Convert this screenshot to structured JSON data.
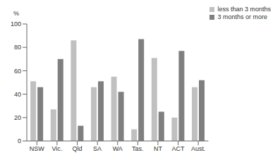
{
  "chart_data": {
    "type": "bar",
    "y_label": "%",
    "categories": [
      "NSW",
      "Vic.",
      "Qld",
      "SA",
      "WA",
      "Tas.",
      "NT",
      "ACT",
      "Aust."
    ],
    "series": [
      {
        "name": "less than 3 months",
        "color": "#c0c0c0",
        "values": [
          51,
          27,
          86,
          46,
          55,
          10,
          71,
          20,
          46
        ]
      },
      {
        "name": "3 months or more",
        "color": "#7f7f7f",
        "values": [
          46,
          70,
          13,
          51,
          42,
          87,
          25,
          77,
          52
        ]
      }
    ],
    "ylim": [
      0,
      100
    ],
    "yticks": [
      0,
      20,
      40,
      60,
      80,
      100
    ],
    "grid": false,
    "legend": "top right"
  }
}
